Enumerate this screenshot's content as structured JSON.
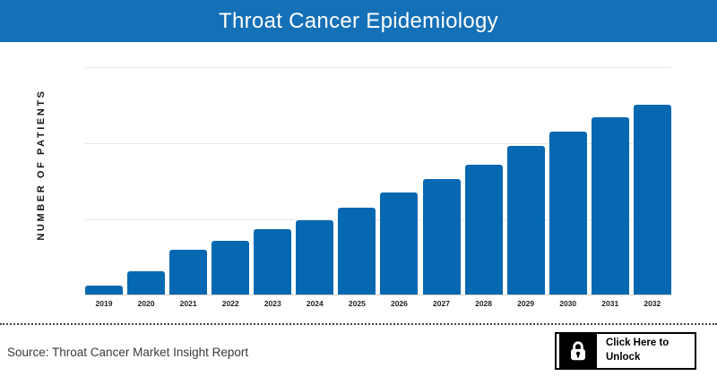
{
  "header": {
    "title": "Throat Cancer Epidemiology",
    "bg_color": "#1470b7",
    "text_color": "#ffffff"
  },
  "chart_data": {
    "type": "bar",
    "title": "Throat Cancer Epidemiology",
    "categories": [
      "2019",
      "2020",
      "2021",
      "2022",
      "2023",
      "2024",
      "2025",
      "2026",
      "2027",
      "2028",
      "2029",
      "2030",
      "2031",
      "2032"
    ],
    "values": [
      10,
      26,
      50,
      60,
      74,
      84,
      98,
      115,
      130,
      146,
      167,
      183,
      200,
      214
    ],
    "values_unit": "relative (y axis has no numeric tick labels)",
    "xlabel": "",
    "ylabel": "NUMBER OF PATIENTS",
    "ylim": [
      0,
      255
    ],
    "y_tick_labels": [],
    "grid": true,
    "legend": false,
    "bar_color": "#0668b1",
    "gridline_color": "#e7e7e7"
  },
  "footer": {
    "source_text": "Source: Throat Cancer Market Insight Report",
    "unlock_button": {
      "label_line1": "Click Here to",
      "label_line2": "Unlock",
      "icon": "lock-icon",
      "icon_bg": "#000000"
    }
  }
}
